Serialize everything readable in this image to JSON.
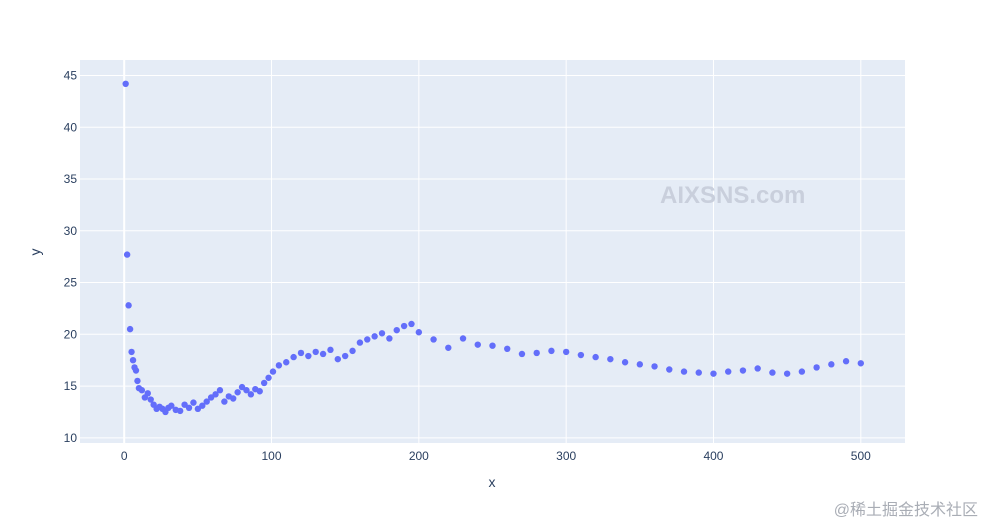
{
  "chart_data": {
    "type": "scatter",
    "title": "",
    "xlabel": "x",
    "ylabel": "y",
    "xlim": [
      -30,
      530
    ],
    "ylim": [
      9.5,
      46.5
    ],
    "x_ticks": [
      0,
      100,
      200,
      300,
      400,
      500
    ],
    "y_ticks": [
      10,
      15,
      20,
      25,
      30,
      35,
      40,
      45
    ],
    "grid": true,
    "marker_color": "#636efa",
    "plot_background": "#e5ecf6",
    "series": [
      {
        "x": [
          1,
          2,
          3,
          4,
          5,
          6,
          7,
          8,
          9,
          10,
          12,
          14,
          16,
          18,
          20,
          22,
          24,
          26,
          28,
          30,
          32,
          35,
          38,
          41,
          44,
          47,
          50,
          53,
          56,
          59,
          62,
          65,
          68,
          71,
          74,
          77,
          80,
          83,
          86,
          89,
          92,
          95,
          98,
          101,
          105,
          110,
          115,
          120,
          125,
          130,
          135,
          140,
          145,
          150,
          155,
          160,
          165,
          170,
          175,
          180,
          185,
          190,
          195,
          200,
          210,
          220,
          230,
          240,
          250,
          260,
          270,
          280,
          290,
          300,
          310,
          320,
          330,
          340,
          350,
          360,
          370,
          380,
          390,
          400,
          410,
          420,
          430,
          440,
          450,
          460,
          470,
          480,
          490,
          500
        ],
        "y": [
          44.2,
          27.7,
          22.8,
          20.5,
          18.3,
          17.5,
          16.8,
          16.5,
          15.5,
          14.8,
          14.6,
          13.9,
          14.3,
          13.7,
          13.2,
          12.8,
          13.0,
          12.8,
          12.5,
          12.9,
          13.1,
          12.7,
          12.6,
          13.2,
          12.9,
          13.4,
          12.8,
          13.1,
          13.5,
          13.9,
          14.2,
          14.6,
          13.5,
          14.0,
          13.8,
          14.4,
          14.9,
          14.6,
          14.2,
          14.7,
          14.5,
          15.3,
          15.8,
          16.4,
          17.0,
          17.3,
          17.8,
          18.2,
          17.9,
          18.3,
          18.1,
          18.5,
          17.6,
          17.9,
          18.4,
          19.2,
          19.5,
          19.8,
          20.1,
          19.6,
          20.4,
          20.8,
          21.0,
          20.2,
          19.5,
          18.7,
          19.6,
          19.0,
          18.9,
          18.6,
          18.1,
          18.2,
          18.4,
          18.3,
          18.0,
          17.8,
          17.6,
          17.3,
          17.1,
          16.9,
          16.6,
          16.4,
          16.3,
          16.2,
          16.4,
          16.5,
          16.7,
          16.3,
          16.2,
          16.4,
          16.8,
          17.1,
          17.4,
          17.2
        ]
      }
    ]
  },
  "watermark": "AIXSNS.com",
  "corner_text": "@稀土掘金技术社区"
}
